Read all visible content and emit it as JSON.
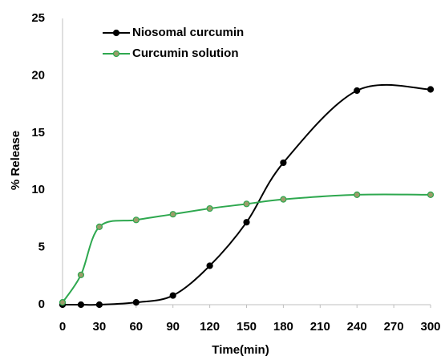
{
  "chart_data": {
    "type": "line",
    "x_label": "Time(min)",
    "y_label": "% Release",
    "x": [
      0,
      15,
      30,
      60,
      90,
      120,
      150,
      180,
      240,
      300
    ],
    "series": [
      {
        "name": "Niosomal curcumin",
        "color": "#000000",
        "marker_color": "#000000",
        "values": [
          0,
          0,
          0,
          0.2,
          0.8,
          3.4,
          7.2,
          12.4,
          18.7,
          18.8
        ]
      },
      {
        "name": "Curcumin solution",
        "color": "#2ea84f",
        "marker_color": "#9c9c6a",
        "values": [
          0.2,
          2.6,
          6.8,
          7.4,
          7.9,
          8.4,
          8.8,
          9.2,
          9.6,
          9.6
        ]
      }
    ],
    "xlim": [
      0,
      300
    ],
    "xticks": [
      0,
      30,
      60,
      90,
      120,
      150,
      180,
      210,
      240,
      270,
      300
    ],
    "ylim": [
      0,
      25
    ],
    "yticks": [
      0,
      5,
      10,
      15,
      20,
      25
    ],
    "smooth": true,
    "grid": false,
    "legend": "upper left"
  }
}
